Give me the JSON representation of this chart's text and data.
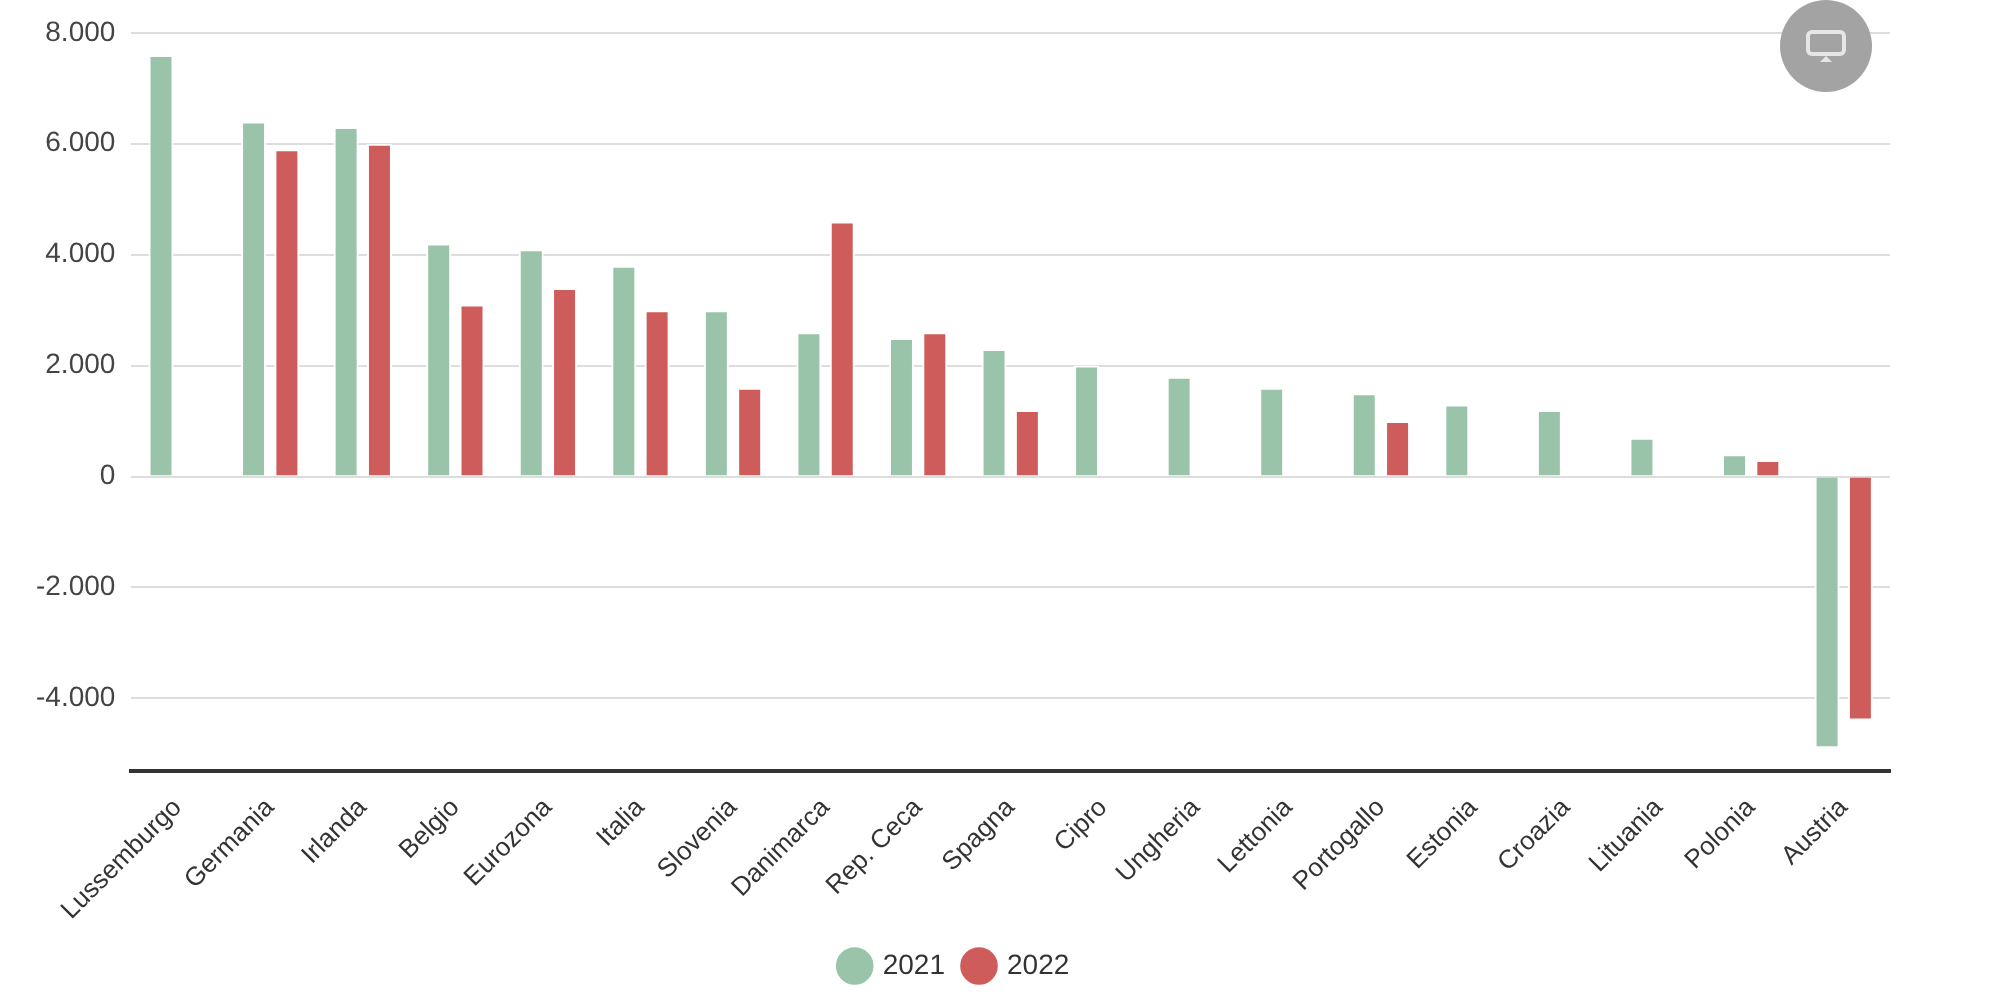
{
  "chart_data": {
    "type": "bar",
    "categories": [
      "Lussemburgo",
      "Germania",
      "Irlanda",
      "Belgio",
      "Eurozona",
      "Italia",
      "Slovenia",
      "Danimarca",
      "Rep. Ceca",
      "Spagna",
      "Cipro",
      "Ungheria",
      "Lettonia",
      "Portogallo",
      "Estonia",
      "Croazia",
      "Lituania",
      "Polonia",
      "Austria"
    ],
    "series": [
      {
        "name": "2021",
        "color": "#9ac4a9",
        "values": [
          7600,
          6400,
          6300,
          4200,
          4100,
          3800,
          3000,
          2600,
          2500,
          2300,
          2000,
          1800,
          1600,
          1500,
          1300,
          1200,
          700,
          400,
          -4900
        ]
      },
      {
        "name": "2022",
        "color": "#cd5c5a",
        "values": [
          null,
          5900,
          6000,
          3100,
          3400,
          3000,
          1600,
          4600,
          2600,
          1200,
          null,
          null,
          null,
          1000,
          null,
          null,
          null,
          300,
          -4400
        ]
      }
    ],
    "ylim": [
      -5300,
      8000
    ],
    "yticks": [
      {
        "value": -4000,
        "label": "-4.000"
      },
      {
        "value": -2000,
        "label": "-2.000"
      },
      0,
      {
        "value": 2000,
        "label": "2.000"
      },
      {
        "value": 4000,
        "label": "4.000"
      },
      {
        "value": 6000,
        "label": "6.000"
      },
      {
        "value": 8000,
        "label": "8.000"
      }
    ],
    "grid": "y",
    "legend": "bottom"
  }
}
